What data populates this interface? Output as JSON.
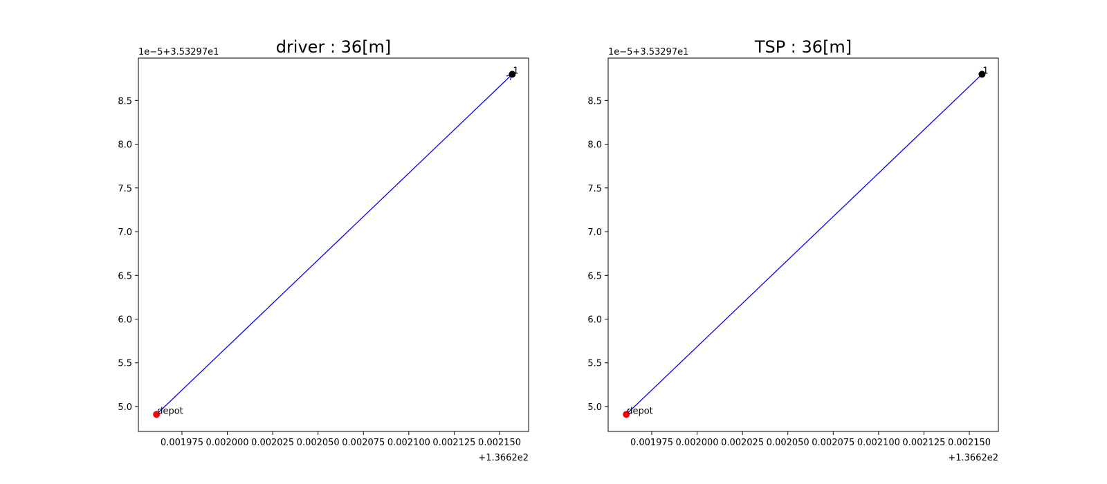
{
  "chart_data": [
    {
      "type": "scatter",
      "title": "driver : 36[m]",
      "xlabel": "",
      "ylabel": "",
      "x_offset_label": "+1.3662e2",
      "y_offset_label": "1e−5+3.53297e1",
      "x_tick_labels": [
        "0.001975",
        "0.002000",
        "0.002025",
        "0.002050",
        "0.002075",
        "0.002100",
        "0.002125",
        "0.002150"
      ],
      "x_tick_values": [
        0.001975,
        0.002,
        0.002025,
        0.00205,
        0.002075,
        0.0021,
        0.002125,
        0.00215
      ],
      "y_tick_labels": [
        "5.0",
        "5.5",
        "6.0",
        "6.5",
        "7.0",
        "7.5",
        "8.0",
        "8.5"
      ],
      "y_tick_values": [
        5.0,
        5.5,
        6.0,
        6.5,
        7.0,
        7.5,
        8.0,
        8.5
      ],
      "xlim": [
        0.001951,
        0.002166
      ],
      "ylim": [
        4.715,
        8.985
      ],
      "grid": false,
      "points": [
        {
          "label": "depot",
          "x": 0.001961,
          "y": 4.91,
          "color": "#ff0000"
        },
        {
          "label": "1",
          "x": 0.002157,
          "y": 8.8,
          "color": "#000000"
        }
      ],
      "route": {
        "from": "depot",
        "to": "1",
        "color": "#0000ff"
      }
    },
    {
      "type": "scatter",
      "title": "TSP : 36[m]",
      "xlabel": "",
      "ylabel": "",
      "x_offset_label": "+1.3662e2",
      "y_offset_label": "1e−5+3.53297e1",
      "x_tick_labels": [
        "0.001975",
        "0.002000",
        "0.002025",
        "0.002050",
        "0.002075",
        "0.002100",
        "0.002125",
        "0.002150"
      ],
      "x_tick_values": [
        0.001975,
        0.002,
        0.002025,
        0.00205,
        0.002075,
        0.0021,
        0.002125,
        0.00215
      ],
      "y_tick_labels": [
        "5.0",
        "5.5",
        "6.0",
        "6.5",
        "7.0",
        "7.5",
        "8.0",
        "8.5"
      ],
      "y_tick_values": [
        5.0,
        5.5,
        6.0,
        6.5,
        7.0,
        7.5,
        8.0,
        8.5
      ],
      "xlim": [
        0.001951,
        0.002166
      ],
      "ylim": [
        4.715,
        8.985
      ],
      "grid": false,
      "points": [
        {
          "label": "depot",
          "x": 0.001961,
          "y": 4.91,
          "color": "#ff0000"
        },
        {
          "label": "1",
          "x": 0.002157,
          "y": 8.8,
          "color": "#000000"
        }
      ],
      "route": {
        "from": "1",
        "to": "depot",
        "color": "#0000ff"
      }
    }
  ]
}
